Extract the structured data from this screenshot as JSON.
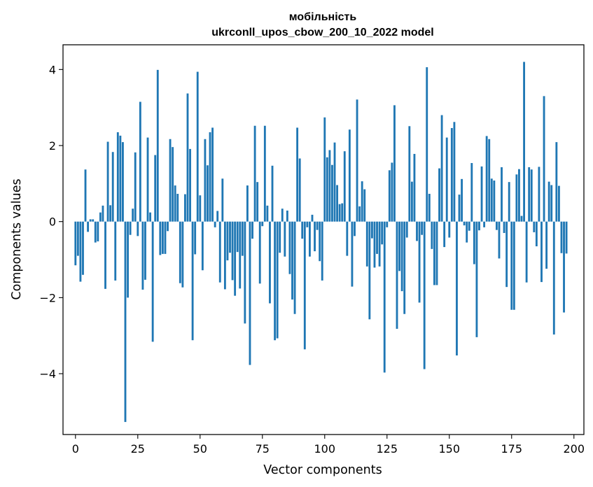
{
  "chart_data": {
    "type": "bar",
    "title": "мобільність",
    "subtitle": "ukrconll_upos_cbow_200_10_2022 model",
    "xlabel": "Vector components",
    "ylabel": "Components values",
    "xlim": [
      -5,
      204
    ],
    "ylim": [
      -5.6,
      4.65
    ],
    "x_ticks": [
      0,
      25,
      50,
      75,
      100,
      125,
      150,
      175,
      200
    ],
    "y_ticks": [
      -4,
      -2,
      0,
      2,
      4
    ],
    "y_tick_labels": [
      "−4",
      "−2",
      "0",
      "2",
      "4"
    ],
    "grid": false,
    "legend": "none",
    "bar_color": "#1f77b4",
    "values": [
      -1.15,
      -0.9,
      -1.58,
      -1.4,
      1.37,
      -0.27,
      0.06,
      0.06,
      -0.55,
      -0.52,
      0.24,
      0.42,
      -1.77,
      2.1,
      0.43,
      1.83,
      -1.55,
      2.35,
      2.26,
      2.09,
      -5.27,
      -2.0,
      -0.35,
      0.34,
      1.82,
      -0.38,
      3.15,
      -1.79,
      -1.53,
      2.21,
      0.24,
      -3.16,
      1.75,
      3.99,
      -0.88,
      -0.85,
      -0.85,
      -0.25,
      2.17,
      1.96,
      0.95,
      0.73,
      -1.62,
      -1.73,
      0.72,
      3.37,
      1.91,
      -3.12,
      -0.86,
      3.94,
      0.69,
      -1.28,
      2.17,
      1.48,
      2.35,
      2.47,
      -0.15,
      0.28,
      -1.6,
      1.13,
      -1.78,
      -1.02,
      -0.82,
      -1.54,
      -1.95,
      -0.8,
      -1.76,
      -0.9,
      -2.68,
      0.95,
      -3.77,
      -0.45,
      2.52,
      1.04,
      -1.63,
      -0.12,
      2.52,
      0.42,
      -2.15,
      1.47,
      -3.12,
      -3.07,
      -0.82,
      0.34,
      -0.92,
      0.29,
      -1.38,
      -2.05,
      -2.43,
      2.47,
      1.66,
      -0.45,
      -3.36,
      -0.15,
      -0.92,
      0.18,
      -0.78,
      -0.22,
      -1.04,
      -1.55,
      2.74,
      1.69,
      1.88,
      1.49,
      2.08,
      0.96,
      0.46,
      0.48,
      1.85,
      -0.9,
      2.42,
      -1.71,
      -0.38,
      3.21,
      0.4,
      1.06,
      0.85,
      -1.18,
      -2.57,
      -0.44,
      -1.21,
      -0.85,
      -1.18,
      -0.6,
      -3.97,
      -0.15,
      1.35,
      1.55,
      3.06,
      -2.82,
      -1.3,
      -1.83,
      -2.43,
      -0.42,
      2.51,
      1.05,
      1.78,
      -0.51,
      -2.13,
      -0.35,
      -3.88,
      4.06,
      0.73,
      -0.72,
      -1.67,
      -1.67,
      1.4,
      2.8,
      -0.67,
      2.21,
      -0.42,
      2.46,
      2.62,
      -3.52,
      0.71,
      1.12,
      -0.1,
      -0.55,
      -0.24,
      1.54,
      -1.12,
      -3.04,
      -0.23,
      1.45,
      -0.15,
      2.25,
      2.17,
      1.13,
      1.08,
      -0.22,
      -0.97,
      1.43,
      -0.3,
      -1.72,
      1.04,
      -2.32,
      -2.32,
      1.24,
      1.38,
      0.15,
      4.2,
      -1.6,
      1.43,
      1.37,
      -0.28,
      -0.65,
      1.44,
      -1.59,
      3.3,
      -1.24,
      1.05,
      0.96,
      -2.97,
      2.09,
      0.94,
      -0.83,
      -2.39,
      -0.84
    ]
  }
}
